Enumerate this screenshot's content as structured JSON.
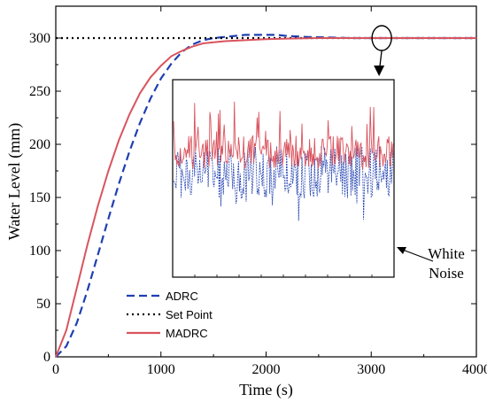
{
  "chart_data": {
    "type": "line",
    "xlabel": "Time (s)",
    "ylabel": "Water Level (mm)",
    "xlim": [
      0,
      4000
    ],
    "ylim": [
      0,
      330
    ],
    "xticks": [
      0,
      1000,
      2000,
      3000,
      4000
    ],
    "yticks": [
      0,
      50,
      100,
      150,
      200,
      250,
      300
    ],
    "grid": false,
    "legend_position": "bottom-left",
    "series": [
      {
        "name": "ADRC",
        "color": "#1f3fb0",
        "style": "dashed",
        "x": [
          0,
          100,
          200,
          300,
          400,
          500,
          600,
          700,
          800,
          900,
          1000,
          1100,
          1200,
          1300,
          1400,
          1500,
          1600,
          1700,
          1800,
          1900,
          2000,
          2100,
          2200,
          2400,
          2600,
          2800,
          3000,
          3500,
          4000
        ],
        "y": [
          0,
          10,
          32,
          62,
          96,
          130,
          163,
          193,
          220,
          243,
          262,
          276,
          287,
          294,
          298,
          300,
          301,
          302,
          303,
          303,
          303,
          303,
          302,
          301,
          300.5,
          300,
          300,
          300,
          300
        ]
      },
      {
        "name": "Set Point",
        "color": "#000000",
        "style": "dotted",
        "x": [
          0,
          4000
        ],
        "y": [
          300,
          300
        ]
      },
      {
        "name": "MADRC",
        "color": "#d9545e",
        "style": "solid",
        "x": [
          0,
          100,
          200,
          300,
          400,
          500,
          600,
          700,
          800,
          900,
          1000,
          1100,
          1200,
          1300,
          1400,
          1500,
          1600,
          1800,
          2000,
          2200,
          2500,
          3000,
          3500,
          4000
        ],
        "y": [
          0,
          25,
          65,
          105,
          142,
          175,
          204,
          228,
          248,
          263,
          274,
          283,
          288,
          292,
          295,
          296,
          297,
          298,
          299,
          299.5,
          300,
          300,
          300,
          300
        ]
      }
    ],
    "annotations": [
      "White Noise"
    ]
  }
}
